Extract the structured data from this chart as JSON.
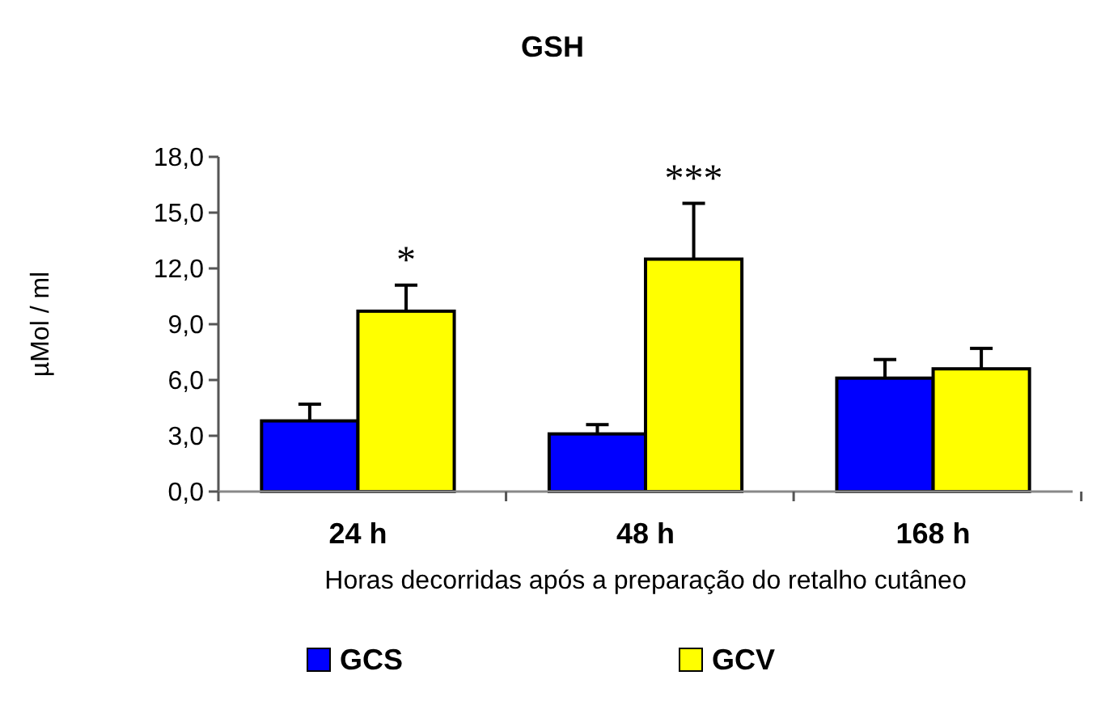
{
  "chart_data": {
    "type": "bar",
    "title": "GSH",
    "xlabel": "Horas decorridas após a preparação do retalho cutâneo",
    "ylabel": "µMol / ml",
    "categories": [
      "24 h",
      "48 h",
      "168 h"
    ],
    "series": [
      {
        "name": "GCS",
        "color": "#0000ff",
        "values": [
          3.8,
          3.1,
          6.1
        ],
        "errors": [
          [
            3.8,
            4.7
          ],
          [
            3.1,
            3.6
          ],
          [
            6.1,
            7.1
          ]
        ]
      },
      {
        "name": "GCV",
        "color": "#ffff00",
        "values": [
          9.7,
          12.5,
          6.6
        ],
        "errors": [
          [
            9.7,
            11.1
          ],
          [
            12.5,
            15.5
          ],
          [
            6.6,
            7.7
          ]
        ]
      }
    ],
    "ylim": [
      0,
      18
    ],
    "yticks": [
      {
        "value": 0,
        "label": "0,0"
      },
      {
        "value": 3,
        "label": "3,0"
      },
      {
        "value": 6,
        "label": "6,0"
      },
      {
        "value": 9,
        "label": "9,0"
      },
      {
        "value": 12,
        "label": "12,0"
      },
      {
        "value": 15,
        "label": "15,0"
      },
      {
        "value": 18,
        "label": "18,0"
      }
    ],
    "annotations": [
      "*",
      "***"
    ],
    "grid": false,
    "legend": "bottom"
  }
}
